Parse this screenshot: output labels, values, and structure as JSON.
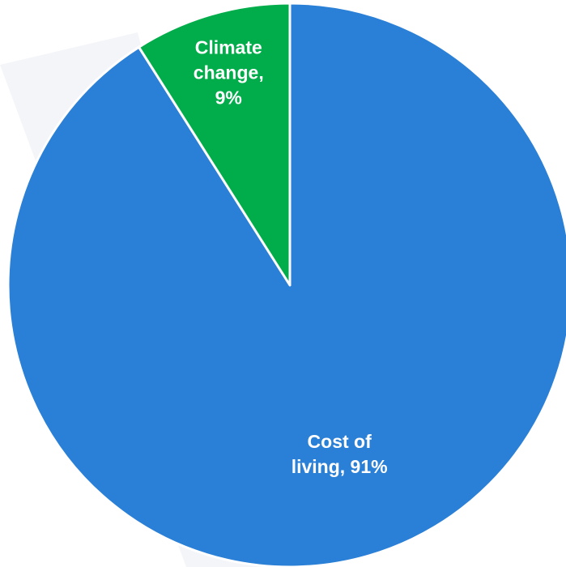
{
  "chart_data": {
    "type": "pie",
    "title": "",
    "slices": [
      {
        "name": "Cost of living",
        "value": 91,
        "label_lines": [
          "Cost of",
          "living, 91%"
        ],
        "color": "#2a7fd6"
      },
      {
        "name": "Climate change",
        "value": 9,
        "label_lines": [
          "Climate",
          "change,",
          "9%"
        ],
        "color": "#00ad4a"
      }
    ],
    "background_watermark_color": "#f4f5f9",
    "separator_color": "#ffffff"
  }
}
